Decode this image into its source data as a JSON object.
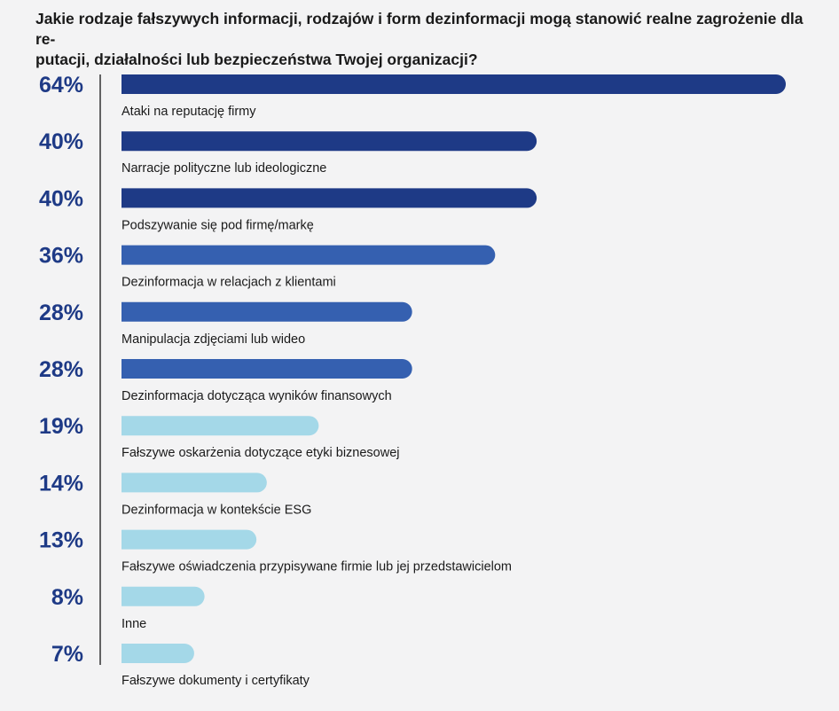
{
  "chart_data": {
    "type": "bar",
    "orientation": "horizontal",
    "title": "Jakie rodzaje fałszywych informacji, rodzajów i form dezinformacji mogą stanowić realne zagrożenie dla re-putacji, działalności lub bezpieczeństwa Twojej organizacji?",
    "title_lines": [
      "Jakie rodzaje fałszywych informacji, rodzajów i form dezinformacji mogą stanowić realne zagrożenie dla re-",
      "putacji, działalności lub bezpieczeństwa Twojej organizacji?"
    ],
    "categories": [
      "Ataki na reputację firmy",
      "Narracje polityczne lub ideologiczne",
      "Podszywanie się pod firmę/markę",
      "Dezinformacja w relacjach z klientami",
      "Manipulacja zdjęciami lub wideo",
      "Dezinformacja dotycząca wyników finansowych",
      "Fałszywe oskarżenia dotyczące etyki biznesowej",
      "Dezinformacja w kontekście ESG",
      "Fałszywe oświadczenia przypisywane firmie lub jej przedstawicielom",
      "Inne",
      "Fałszywe dokumenty i certyfikaty"
    ],
    "values": [
      64,
      40,
      40,
      36,
      28,
      28,
      19,
      14,
      13,
      8,
      7
    ],
    "value_labels": [
      "64%",
      "40%",
      "40%",
      "36%",
      "28%",
      "28%",
      "19%",
      "14%",
      "13%",
      "8%",
      "7%"
    ],
    "unit": "%",
    "xlim": [
      0,
      64
    ],
    "grid": false,
    "colors": {
      "dark": "#1e3a86",
      "medium": "#3560b0",
      "light": "#a4d8e8",
      "label": "#1e3a86",
      "text": "#1a1a1a",
      "axis": "#333333"
    },
    "bar_colors": [
      "dark",
      "dark",
      "dark",
      "medium",
      "medium",
      "medium",
      "light",
      "light",
      "light",
      "light",
      "light"
    ]
  }
}
